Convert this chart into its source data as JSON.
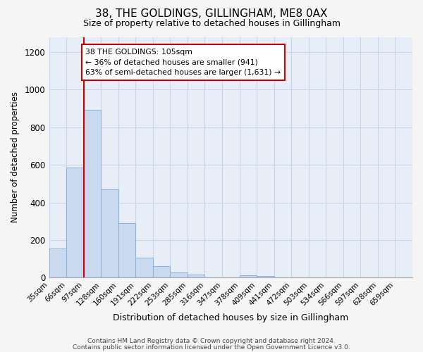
{
  "title": "38, THE GOLDINGS, GILLINGHAM, ME8 0AX",
  "subtitle": "Size of property relative to detached houses in Gillingham",
  "xlabel": "Distribution of detached houses by size in Gillingham",
  "ylabel": "Number of detached properties",
  "bin_labels": [
    "35sqm",
    "66sqm",
    "97sqm",
    "128sqm",
    "160sqm",
    "191sqm",
    "222sqm",
    "253sqm",
    "285sqm",
    "316sqm",
    "347sqm",
    "378sqm",
    "409sqm",
    "441sqm",
    "472sqm",
    "503sqm",
    "534sqm",
    "566sqm",
    "597sqm",
    "628sqm",
    "659sqm"
  ],
  "bin_values": [
    155,
    585,
    893,
    470,
    290,
    105,
    63,
    27,
    15,
    0,
    0,
    12,
    10,
    0,
    0,
    0,
    0,
    0,
    0,
    0,
    0
  ],
  "bar_color": "#c9d9f0",
  "bar_edge_color": "#8ab0d8",
  "vline_color": "#cc0000",
  "annotation_line1": "38 THE GOLDINGS: 105sqm",
  "annotation_line2": "← 36% of detached houses are smaller (941)",
  "annotation_line3": "63% of semi-detached houses are larger (1,631) →",
  "annotation_box_color": "#ffffff",
  "annotation_box_edge": "#cc0000",
  "ylim": [
    0,
    1280
  ],
  "yticks": [
    0,
    200,
    400,
    600,
    800,
    1000,
    1200
  ],
  "grid_color": "#c8d4e8",
  "bg_color": "#e8eef8",
  "fig_color": "#f5f5f5",
  "footer_line1": "Contains HM Land Registry data © Crown copyright and database right 2024.",
  "footer_line2": "Contains public sector information licensed under the Open Government Licence v3.0."
}
